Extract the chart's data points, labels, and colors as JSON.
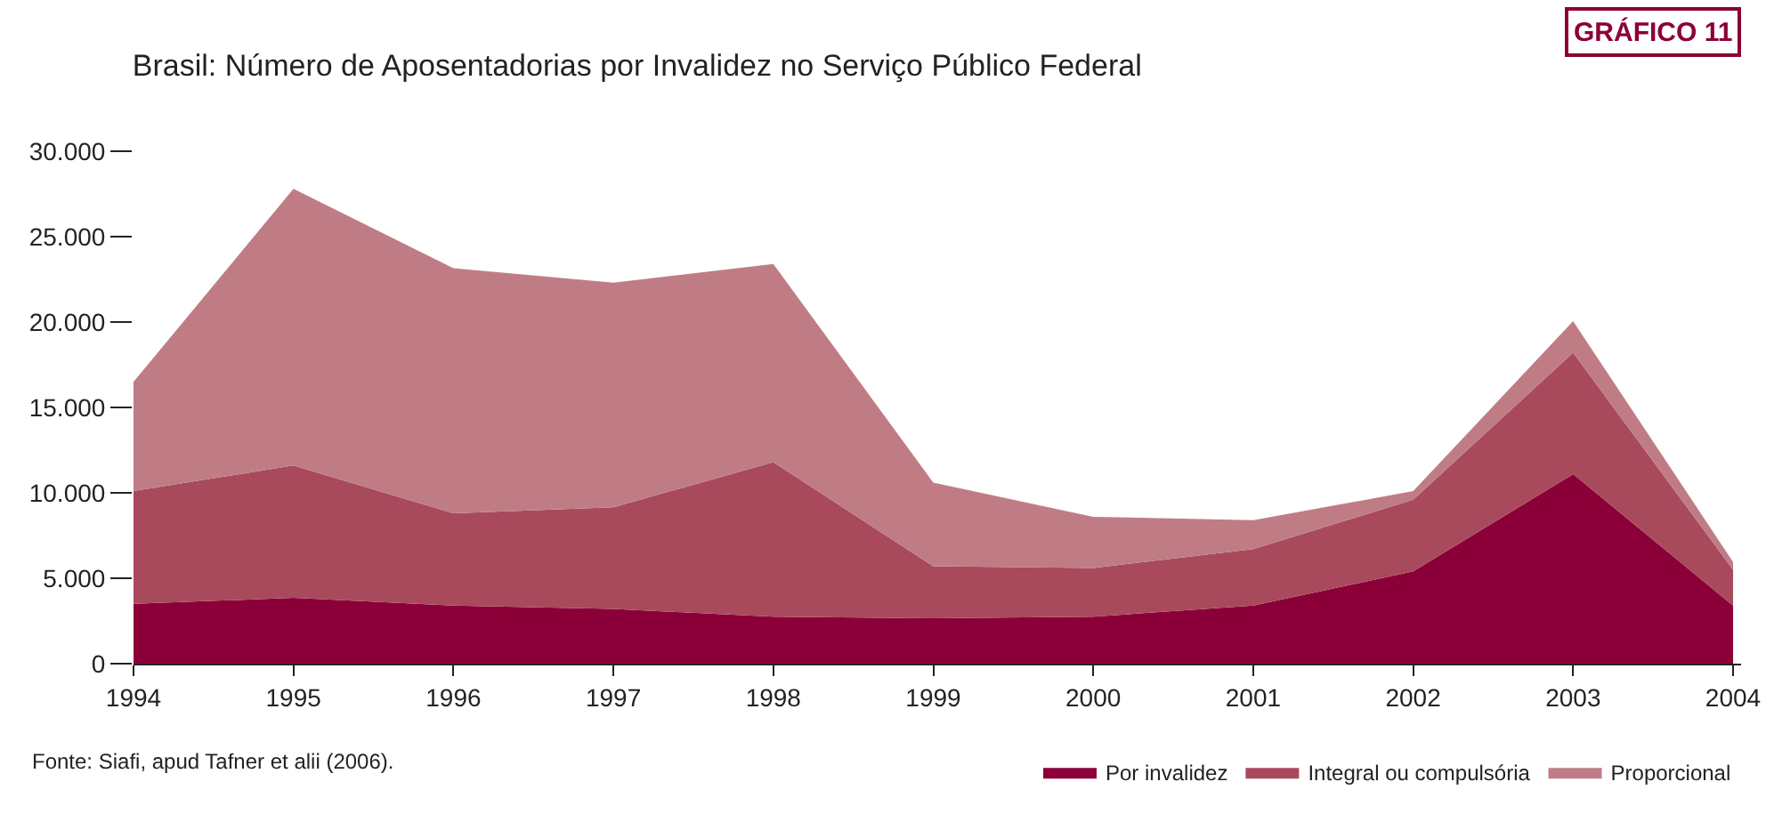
{
  "chart_data": {
    "type": "area",
    "stacked": true,
    "title": "Brasil: Número de Aposentadorias por Invalidez no Serviço Público Federal",
    "annotations": [
      "GRÁFICO 11",
      "Fonte: Siafi, $^{}$apud Tafner et alii (2006)."
    ],
    "categories": [
      "1994",
      "1995",
      "1996",
      "1997",
      "1998",
      "1999",
      "2000",
      "2001",
      "2002",
      "2003",
      "2004"
    ],
    "series": [
      {
        "name": "Por invalidez",
        "color": "#8b0038",
        "values": [
          3500,
          3850,
          3400,
          3200,
          2750,
          2650,
          2750,
          3400,
          5400,
          11100,
          3400
        ]
      },
      {
        "name": "Integral ou compulsória",
        "color": "#a84a5c",
        "values": [
          6600,
          7750,
          5400,
          5950,
          9050,
          3050,
          2850,
          3300,
          4200,
          7100,
          2100
        ]
      },
      {
        "name": "Proporcional",
        "color": "#c07c84",
        "values": [
          6400,
          16200,
          14350,
          13150,
          11600,
          4900,
          3000,
          1700,
          500,
          1850,
          450
        ]
      }
    ],
    "ylim": [
      0,
      30000
    ],
    "yticks": [
      {
        "value": 0,
        "label": "0"
      },
      {
        "value": 5000,
        "label": "5.000"
      },
      {
        "value": 10000,
        "label": "10.000"
      },
      {
        "value": 15000,
        "label": "15.000"
      },
      {
        "value": 20000,
        "label": "20.000"
      },
      {
        "value": 25000,
        "label": "25.000"
      },
      {
        "value": 30000,
        "label": "30.000"
      }
    ],
    "grid": false,
    "legend": "bottom right"
  }
}
